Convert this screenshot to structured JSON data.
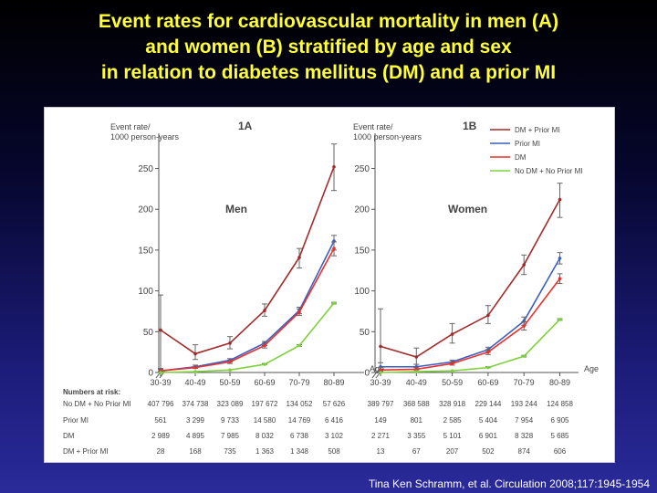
{
  "slide": {
    "title_lines": [
      "Event rates for cardiovascular mortality in men (A)",
      "and women (B) stratified by age and sex",
      "in relation to diabetes mellitus (DM) and a prior MI"
    ],
    "citation": "Tina Ken Schramm, et al. Circulation 2008;117:1945-1954"
  },
  "colors": {
    "dm_prior_mi": "#a32a2a",
    "prior_mi": "#3a5fc0",
    "dm": "#e8302e",
    "no_dm_no_prior_mi": "#7ed13a",
    "title": "#ffff33"
  },
  "chart_data": [
    {
      "type": "line",
      "title": "1A",
      "label": "Men",
      "ylabel": "Event rate/\n1000 person-years",
      "xlabel": "Age",
      "ylim": [
        0,
        250
      ],
      "yticks": [
        0,
        50,
        100,
        150,
        200,
        250
      ],
      "categories": [
        "30-39",
        "40-49",
        "50-59",
        "60-69",
        "70-79",
        "80-89"
      ],
      "series": [
        {
          "name": "DM + Prior MI",
          "color": "#a32a2a",
          "values": [
            52,
            23,
            36,
            76,
            141,
            252
          ],
          "err_low": [
            0,
            16,
            29,
            69,
            128,
            223
          ],
          "err_high": [
            95,
            34,
            44,
            84,
            152,
            280
          ]
        },
        {
          "name": "Prior MI",
          "color": "#3a5fc0",
          "values": [
            2,
            7,
            15,
            36,
            76,
            161
          ],
          "err_low": [
            0,
            5,
            13,
            33,
            72,
            150
          ],
          "err_high": [
            5,
            9,
            17,
            38,
            80,
            168
          ]
        },
        {
          "name": "DM",
          "color": "#e8302e",
          "values": [
            2,
            6,
            13,
            33,
            74,
            152
          ],
          "err_low": [
            1,
            5,
            11,
            30,
            70,
            143
          ],
          "err_high": [
            4,
            7,
            15,
            36,
            78,
            160
          ]
        },
        {
          "name": "No DM + No Prior MI",
          "color": "#7ed13a",
          "values": [
            0,
            1,
            3,
            10,
            33,
            85
          ],
          "err_low": [
            0,
            1,
            3,
            10,
            32,
            84
          ],
          "err_high": [
            0,
            1,
            3,
            11,
            34,
            86
          ]
        }
      ],
      "numbers_at_risk": {
        "label": "Numbers at risk:",
        "rows": [
          {
            "label": "No DM + No Prior MI",
            "values": [
              "407 796",
              "374 738",
              "323 089",
              "197 672",
              "134 052",
              "57 626"
            ]
          },
          {
            "label": "Prior MI",
            "values": [
              "561",
              "3 299",
              "9 733",
              "14 580",
              "14 769",
              "6 416"
            ]
          },
          {
            "label": "DM",
            "values": [
              "2 989",
              "4 895",
              "7 985",
              "8 032",
              "6 738",
              "3 102"
            ]
          },
          {
            "label": "DM + Prior MI",
            "values": [
              "28",
              "168",
              "735",
              "1 363",
              "1 348",
              "508"
            ]
          }
        ]
      }
    },
    {
      "type": "line",
      "title": "1B",
      "label": "Women",
      "ylabel": "Event rate/\n1000 person-years",
      "xlabel": "Age",
      "ylim": [
        0,
        250
      ],
      "yticks": [
        0,
        50,
        100,
        150,
        200,
        250
      ],
      "categories": [
        "30-39",
        "40-49",
        "50-59",
        "60-69",
        "70-79",
        "80-89"
      ],
      "legend_position": "top-right",
      "series": [
        {
          "name": "DM + Prior MI",
          "color": "#a32a2a",
          "values": [
            32,
            19,
            47,
            70,
            132,
            212
          ],
          "err_low": [
            0,
            10,
            36,
            60,
            120,
            190
          ],
          "err_high": [
            78,
            30,
            60,
            82,
            144,
            232
          ]
        },
        {
          "name": "Prior MI",
          "color": "#3a5fc0",
          "values": [
            7,
            7,
            13,
            28,
            63,
            140
          ],
          "err_low": [
            3,
            4,
            11,
            25,
            58,
            133
          ],
          "err_high": [
            12,
            10,
            15,
            31,
            68,
            147
          ]
        },
        {
          "name": "DM",
          "color": "#e8302e",
          "values": [
            3,
            4,
            11,
            25,
            57,
            115
          ],
          "err_low": [
            1,
            3,
            9,
            22,
            52,
            109
          ],
          "err_high": [
            6,
            6,
            13,
            28,
            62,
            121
          ]
        },
        {
          "name": "No DM + No Prior MI",
          "color": "#7ed13a",
          "values": [
            0,
            1,
            2,
            6,
            20,
            65
          ],
          "err_low": [
            0,
            1,
            2,
            6,
            19,
            64
          ],
          "err_high": [
            0,
            1,
            2,
            7,
            21,
            66
          ]
        }
      ],
      "numbers_at_risk": {
        "rows": [
          {
            "label": "No DM + No Prior MI",
            "values": [
              "389 797",
              "368 588",
              "328 918",
              "229 144",
              "193 244",
              "124 858"
            ]
          },
          {
            "label": "Prior MI",
            "values": [
              "149",
              "801",
              "2 585",
              "5 404",
              "7 954",
              "6 905"
            ]
          },
          {
            "label": "DM",
            "values": [
              "2 271",
              "3 355",
              "5 101",
              "6 901",
              "8 328",
              "5 685"
            ]
          },
          {
            "label": "DM + Prior MI",
            "values": [
              "13",
              "67",
              "207",
              "502",
              "874",
              "606"
            ]
          }
        ]
      }
    }
  ]
}
